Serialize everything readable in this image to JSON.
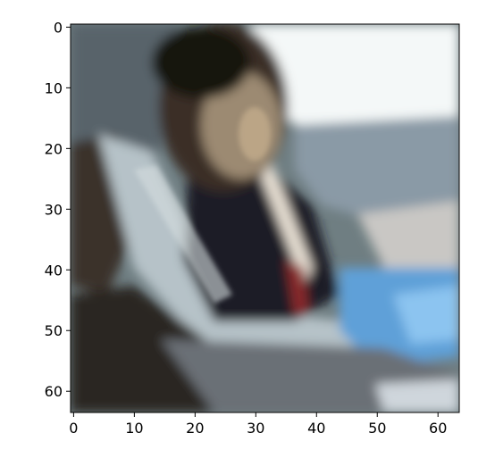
{
  "figure": {
    "kind": "image-display",
    "image_size": [
      64,
      64
    ],
    "x_axis": {
      "range": [
        -0.5,
        63.5
      ],
      "ticks": [
        0,
        10,
        20,
        30,
        40,
        50,
        60
      ],
      "tick_labels": [
        "0",
        "10",
        "20",
        "30",
        "40",
        "50",
        "60"
      ]
    },
    "y_axis": {
      "range": [
        -0.5,
        63.5
      ],
      "inverted": true,
      "ticks": [
        0,
        10,
        20,
        30,
        40,
        50,
        60
      ],
      "tick_labels": [
        "0",
        "10",
        "20",
        "30",
        "40",
        "50",
        "60"
      ]
    },
    "colors": {
      "axes": "#000000",
      "background": "#ffffff"
    }
  }
}
